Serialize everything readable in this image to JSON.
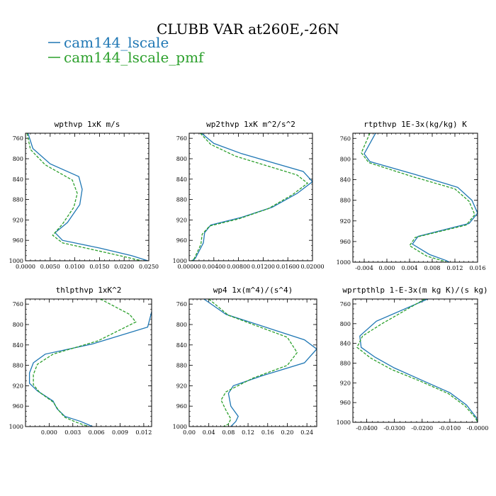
{
  "figure": {
    "title": "CLUBB VAR at260E,-26N",
    "legend": [
      {
        "name": "cam144_lscale",
        "color": "#1f77b4",
        "dash": "solid"
      },
      {
        "name": "cam144_lscale_pmf",
        "color": "#2ca02c",
        "dash": "dashed"
      }
    ]
  },
  "chart_data": [
    {
      "type": "line",
      "title": "wpthvp  1xK m/s",
      "xlim": [
        0.0,
        0.025
      ],
      "ylim": [
        1000,
        750
      ],
      "xticks": [
        0.0,
        0.005,
        0.01,
        0.015,
        0.02,
        0.025
      ],
      "xtick_labels": [
        "0.0000",
        "0.0050",
        "0.0100",
        "0.0150",
        "0.0200",
        "0.0250"
      ],
      "yticks": [
        760,
        800,
        840,
        880,
        920,
        960,
        1000
      ],
      "ytick_labels": [
        "760",
        "800",
        "840",
        "880",
        "920",
        "960",
        "1000"
      ],
      "series": [
        {
          "name": "cam144_lscale",
          "points": [
            [
              0.0005,
              750
            ],
            [
              0.0015,
              780
            ],
            [
              0.005,
              810
            ],
            [
              0.0108,
              835
            ],
            [
              0.0115,
              860
            ],
            [
              0.011,
              890
            ],
            [
              0.0085,
              925
            ],
            [
              0.006,
              945
            ],
            [
              0.0075,
              960
            ],
            [
              0.015,
              975
            ],
            [
              0.0215,
              990
            ],
            [
              0.0248,
              1000
            ]
          ]
        },
        {
          "name": "cam144_lscale_pmf",
          "points": [
            [
              0.0003,
              750
            ],
            [
              0.001,
              782
            ],
            [
              0.004,
              812
            ],
            [
              0.0095,
              842
            ],
            [
              0.0105,
              868
            ],
            [
              0.0098,
              895
            ],
            [
              0.0075,
              928
            ],
            [
              0.0055,
              950
            ],
            [
              0.0075,
              965
            ],
            [
              0.0145,
              980
            ],
            [
              0.0205,
              993
            ],
            [
              0.0235,
              1000
            ]
          ]
        }
      ]
    },
    {
      "type": "line",
      "title": "wp2thvp  1xK m^2/s^2",
      "xlim": [
        0.0,
        0.02
      ],
      "ylim": [
        1000,
        750
      ],
      "xticks": [
        0.0,
        0.004,
        0.008,
        0.012,
        0.016,
        0.02
      ],
      "xtick_labels": [
        "0.00000",
        "0.00400",
        "0.00800",
        "0.01200",
        "0.01600",
        "0.02000"
      ],
      "yticks": [
        760,
        800,
        840,
        880,
        920,
        960,
        1000
      ],
      "ytick_labels": [
        "760",
        "800",
        "840",
        "880",
        "920",
        "960",
        "1000"
      ],
      "series": [
        {
          "name": "cam144_lscale",
          "points": [
            [
              0.002,
              750
            ],
            [
              0.004,
              770
            ],
            [
              0.0085,
              790
            ],
            [
              0.0185,
              825
            ],
            [
              0.02,
              845
            ],
            [
              0.0175,
              868
            ],
            [
              0.0135,
              895
            ],
            [
              0.0085,
              915
            ],
            [
              0.0035,
              930
            ],
            [
              0.0025,
              945
            ],
            [
              0.0023,
              965
            ],
            [
              0.001,
              995
            ],
            [
              0.0005,
              1000
            ]
          ]
        },
        {
          "name": "cam144_lscale_pmf",
          "points": [
            [
              0.0018,
              750
            ],
            [
              0.0035,
              772
            ],
            [
              0.0075,
              795
            ],
            [
              0.0175,
              832
            ],
            [
              0.0192,
              848
            ],
            [
              0.0168,
              870
            ],
            [
              0.0128,
              898
            ],
            [
              0.008,
              918
            ],
            [
              0.0033,
              932
            ],
            [
              0.0021,
              948
            ],
            [
              0.0019,
              968
            ],
            [
              0.0008,
              996
            ],
            [
              0.0004,
              1000
            ]
          ]
        }
      ]
    },
    {
      "type": "line",
      "title": "rtpthvp  1E-3x(kg/kg) K",
      "xlim": [
        -0.006,
        0.016
      ],
      "ylim": [
        1000,
        750
      ],
      "xticks": [
        -0.004,
        0.0,
        0.004,
        0.008,
        0.012,
        0.016
      ],
      "xtick_labels": [
        "-0.004",
        "0.000",
        "0.004",
        "0.008",
        "0.012",
        "0.016"
      ],
      "yticks": [
        760,
        800,
        840,
        880,
        920,
        960,
        1000
      ],
      "ytick_labels": [
        "760",
        "800",
        "840",
        "880",
        "920",
        "960",
        "1000"
      ],
      "series": [
        {
          "name": "cam144_lscale",
          "points": [
            [
              -0.002,
              750
            ],
            [
              -0.004,
              790
            ],
            [
              -0.003,
              805
            ],
            [
              0.005,
              830
            ],
            [
              0.0125,
              855
            ],
            [
              0.015,
              880
            ],
            [
              0.016,
              905
            ],
            [
              0.0145,
              925
            ],
            [
              0.0055,
              950
            ],
            [
              0.0045,
              965
            ],
            [
              0.0075,
              985
            ],
            [
              0.0105,
              997
            ],
            [
              0.011,
              1000
            ]
          ]
        },
        {
          "name": "cam144_lscale_pmf",
          "points": [
            [
              -0.003,
              750
            ],
            [
              -0.0045,
              788
            ],
            [
              -0.0032,
              807
            ],
            [
              0.0045,
              834
            ],
            [
              0.012,
              858
            ],
            [
              0.0145,
              882
            ],
            [
              0.0155,
              908
            ],
            [
              0.014,
              928
            ],
            [
              0.005,
              952
            ],
            [
              0.004,
              968
            ],
            [
              0.007,
              988
            ],
            [
              0.01,
              998
            ],
            [
              0.0105,
              1000
            ]
          ]
        }
      ]
    },
    {
      "type": "line",
      "title": "thlpthvp  1xK^2",
      "xlim": [
        -0.003,
        0.013
      ],
      "ylim": [
        1000,
        750
      ],
      "xticks": [
        0.0,
        0.003,
        0.006,
        0.009,
        0.012
      ],
      "xtick_labels": [
        "0.000",
        "0.003",
        "0.006",
        "0.009",
        "0.012"
      ],
      "yticks": [
        760,
        800,
        840,
        880,
        920,
        960,
        1000
      ],
      "ytick_labels": [
        "760",
        "800",
        "840",
        "880",
        "920",
        "960",
        "1000"
      ],
      "series": [
        {
          "name": "cam144_lscale",
          "points": [
            [
              0.013,
              775
            ],
            [
              0.0125,
              805
            ],
            [
              0.0055,
              838
            ],
            [
              -0.0005,
              858
            ],
            [
              -0.002,
              875
            ],
            [
              -0.0025,
              895
            ],
            [
              -0.0025,
              915
            ],
            [
              -0.0015,
              930
            ],
            [
              0.0005,
              950
            ],
            [
              0.001,
              965
            ],
            [
              0.002,
              980
            ],
            [
              0.004,
              990
            ],
            [
              0.0055,
              1000
            ]
          ]
        },
        {
          "name": "cam144_lscale_pmf",
          "points": [
            [
              0.0065,
              750
            ],
            [
              0.0102,
              780
            ],
            [
              0.011,
              795
            ],
            [
              0.0062,
              832
            ],
            [
              0.0005,
              858
            ],
            [
              -0.0015,
              878
            ],
            [
              -0.002,
              898
            ],
            [
              -0.002,
              918
            ],
            [
              -0.0012,
              933
            ],
            [
              0.0005,
              952
            ],
            [
              0.0012,
              968
            ],
            [
              0.002,
              982
            ],
            [
              0.0035,
              992
            ],
            [
              0.005,
              1000
            ]
          ]
        }
      ]
    },
    {
      "type": "line",
      "title": "wp4  1x(m^4)/(s^4)",
      "xlim": [
        0.0,
        0.26
      ],
      "ylim": [
        1000,
        750
      ],
      "xticks": [
        0.0,
        0.04,
        0.08,
        0.12,
        0.16,
        0.2,
        0.24
      ],
      "xtick_labels": [
        "0.00",
        "0.04",
        "0.08",
        "0.12",
        "0.16",
        "0.20",
        "0.24"
      ],
      "yticks": [
        760,
        800,
        840,
        880,
        920,
        960,
        1000
      ],
      "ytick_labels": [
        "760",
        "800",
        "840",
        "880",
        "920",
        "960",
        "1000"
      ],
      "series": [
        {
          "name": "cam144_lscale",
          "points": [
            [
              0.03,
              750
            ],
            [
              0.075,
              780
            ],
            [
              0.235,
              830
            ],
            [
              0.26,
              848
            ],
            [
              0.235,
              875
            ],
            [
              0.15,
              900
            ],
            [
              0.09,
              920
            ],
            [
              0.08,
              935
            ],
            [
              0.085,
              960
            ],
            [
              0.1,
              980
            ],
            [
              0.095,
              990
            ],
            [
              0.085,
              1000
            ]
          ]
        },
        {
          "name": "cam144_lscale_pmf",
          "points": [
            [
              0.04,
              750
            ],
            [
              0.08,
              782
            ],
            [
              0.2,
              825
            ],
            [
              0.22,
              855
            ],
            [
              0.2,
              880
            ],
            [
              0.13,
              905
            ],
            [
              0.075,
              932
            ],
            [
              0.065,
              948
            ],
            [
              0.075,
              968
            ],
            [
              0.085,
              985
            ],
            [
              0.08,
              995
            ],
            [
              0.07,
              1000
            ]
          ]
        }
      ]
    },
    {
      "type": "line",
      "title": "wprtpthlp  1-E-3x(m kg K)/(s kg)",
      "xlim": [
        -0.045,
        0.0
      ],
      "ylim": [
        1000,
        750
      ],
      "xticks": [
        -0.04,
        -0.03,
        -0.02,
        -0.01,
        0.0
      ],
      "xtick_labels": [
        "-0.0400",
        "-0.0300",
        "-0.0200",
        "-0.0100",
        "-0.0000"
      ],
      "yticks": [
        760,
        800,
        840,
        880,
        920,
        960,
        1000
      ],
      "ytick_labels": [
        "760",
        "800",
        "840",
        "880",
        "920",
        "960",
        "1000"
      ],
      "series": [
        {
          "name": "cam144_lscale",
          "points": [
            [
              -0.018,
              750
            ],
            [
              -0.0365,
              795
            ],
            [
              -0.0425,
              825
            ],
            [
              -0.042,
              848
            ],
            [
              -0.037,
              868
            ],
            [
              -0.03,
              890
            ],
            [
              -0.02,
              915
            ],
            [
              -0.01,
              940
            ],
            [
              -0.004,
              965
            ],
            [
              -0.0005,
              990
            ],
            [
              0.0,
              1000
            ]
          ]
        },
        {
          "name": "cam144_lscale_pmf",
          "points": [
            [
              -0.019,
              750
            ],
            [
              -0.0345,
              800
            ],
            [
              -0.0415,
              825
            ],
            [
              -0.0435,
              848
            ],
            [
              -0.0385,
              870
            ],
            [
              -0.031,
              893
            ],
            [
              -0.0205,
              917
            ],
            [
              -0.0105,
              942
            ],
            [
              -0.0045,
              967
            ],
            [
              -0.0008,
              991
            ],
            [
              0.0,
              1000
            ]
          ]
        }
      ]
    }
  ]
}
